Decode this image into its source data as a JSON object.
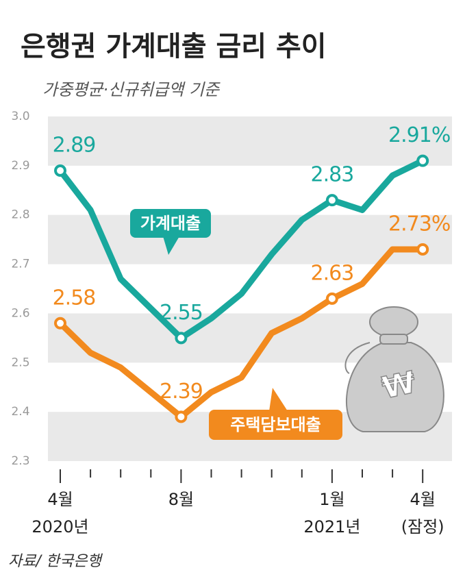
{
  "chart_data": {
    "type": "line",
    "title": "은행권 가계대출 금리 추이",
    "subtitle": "가중평균·신규취급액 기준",
    "source": "자료/ 한국은행",
    "categories": [
      "4월",
      null,
      null,
      null,
      "8월",
      null,
      null,
      null,
      null,
      "1월",
      null,
      null,
      "4월"
    ],
    "sublabels": [
      "2020년",
      null,
      null,
      null,
      null,
      null,
      null,
      null,
      null,
      "2021년",
      null,
      null,
      "(잠정)"
    ],
    "series": [
      {
        "name": "가계대출",
        "color": "#19a89d",
        "values": [
          2.89,
          2.81,
          2.67,
          2.61,
          2.55,
          2.59,
          2.64,
          2.72,
          2.79,
          2.83,
          2.81,
          2.88,
          2.91
        ],
        "value_labels": [
          "2.89",
          null,
          null,
          null,
          "2.55",
          null,
          null,
          null,
          null,
          "2.83",
          null,
          null,
          "2.91%"
        ]
      },
      {
        "name": "주택담보대출",
        "color": "#f28a1e",
        "values": [
          2.58,
          2.52,
          2.49,
          2.44,
          2.39,
          2.44,
          2.47,
          2.56,
          2.59,
          2.63,
          2.66,
          2.73,
          2.73
        ],
        "value_labels": [
          "2.58",
          null,
          null,
          null,
          "2.39",
          null,
          null,
          null,
          null,
          "2.63",
          null,
          null,
          "2.73%"
        ]
      }
    ],
    "ylim": [
      2.3,
      3.0
    ],
    "yticks": [
      2.3,
      2.4,
      2.5,
      2.6,
      2.7,
      2.8,
      2.9,
      {
        "value": 3.0,
        "label": "3.0"
      }
    ],
    "grid": true
  }
}
